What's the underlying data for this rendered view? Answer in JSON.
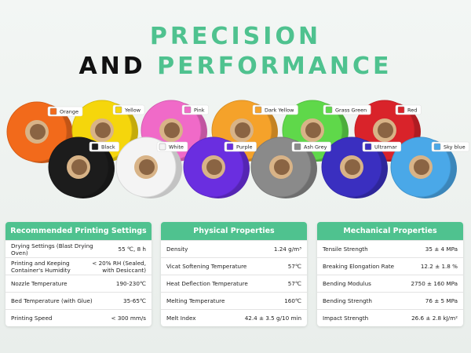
{
  "title": {
    "line1": "PRECISION",
    "line2_dark": "AND",
    "line2_accent": "PERFORMANCE"
  },
  "filaments": [
    {
      "name": "Orange",
      "color": "#f26a1b"
    },
    {
      "name": "Yellow",
      "color": "#f5d60c"
    },
    {
      "name": "Pink",
      "color": "#f06ac8"
    },
    {
      "name": "Dark Yellow",
      "color": "#f5a22a"
    },
    {
      "name": "Grass Green",
      "color": "#5fd84a"
    },
    {
      "name": "Red",
      "color": "#d9232a"
    },
    {
      "name": "Black",
      "color": "#1c1c1c"
    },
    {
      "name": "White",
      "color": "#f4f4f4"
    },
    {
      "name": "Purple",
      "color": "#6a2ee0"
    },
    {
      "name": "Ash Grey",
      "color": "#8a8a8a"
    },
    {
      "name": "Ultramar",
      "color": "#3a2fc0"
    },
    {
      "name": "Sky blue",
      "color": "#4aa8e8"
    }
  ],
  "tables": [
    {
      "title": "Recommended Printing Settings",
      "rows": [
        [
          "Drying Settings (Blast Drying Oven)",
          "55 ℃, 8 h"
        ],
        [
          "Printing and Keeping Container's Humidity",
          "< 20% RH (Sealed, with Desiccant)"
        ],
        [
          "Nozzle Temperature",
          "190-230℃"
        ],
        [
          "Bed Temperature (with Glue)",
          "35-65℃"
        ],
        [
          "Printing Speed",
          "< 300 mm/s"
        ]
      ]
    },
    {
      "title": "Physical Properties",
      "rows": [
        [
          "Density",
          "1.24 g/m³"
        ],
        [
          "Vicat Softening Temperature",
          "57℃"
        ],
        [
          "Heat Deflection Temperature",
          "57℃"
        ],
        [
          "Melting Temperature",
          "160℃"
        ],
        [
          "Melt Index",
          "42.4 ± 3.5 g/10 min"
        ]
      ]
    },
    {
      "title": "Mechanical Properties",
      "rows": [
        [
          "Tensile Strength",
          "35 ± 4 MPa"
        ],
        [
          "Breaking Elongation Rate",
          "12.2 ± 1.8 %"
        ],
        [
          "Bending Modulus",
          "2750 ± 160 MPa"
        ],
        [
          "Bending Strength",
          "76 ± 5 MPa"
        ],
        [
          "Impact Strength",
          "26.6 ± 2.8 kJ/m²"
        ]
      ]
    }
  ]
}
